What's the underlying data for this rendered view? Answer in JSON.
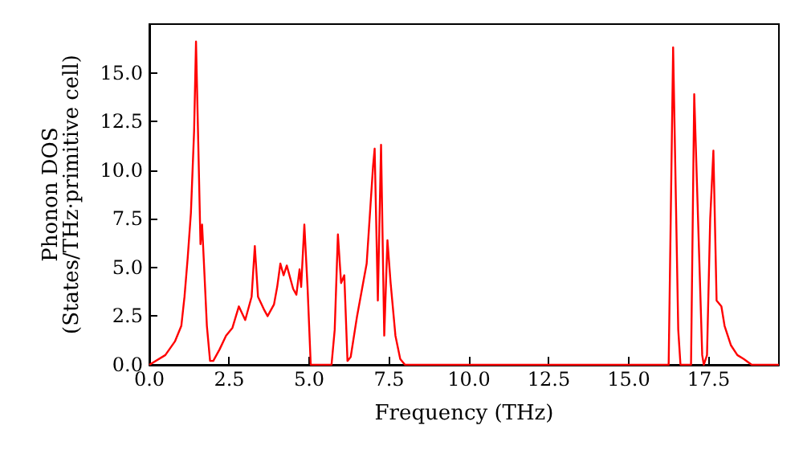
{
  "chart_data": {
    "type": "line",
    "xlabel": "Frequency (THz)",
    "ylabel": "Phonon DOS\n(States/THz·primitive cell)",
    "xlim": [
      0,
      19.7
    ],
    "xticks": [
      {
        "value": 0,
        "label": "0.0"
      },
      2.5,
      {
        "value": 5,
        "label": "5.0"
      },
      7.5,
      {
        "value": 10,
        "label": "10.0"
      },
      12.5,
      {
        "value": 15,
        "label": "15.0"
      },
      17.5
    ],
    "ylim": [
      0,
      17.5
    ],
    "yticks": [
      {
        "value": 0,
        "label": "0.0"
      },
      2.5,
      {
        "value": 5,
        "label": "5.0"
      },
      7.5,
      {
        "value": 10,
        "label": "10.0"
      },
      12.5,
      {
        "value": 15,
        "label": "15.0"
      }
    ],
    "marker": "none",
    "line_style": "solid",
    "series": [
      {
        "color": "#ff0000",
        "x": [
          0,
          0.5,
          0.8,
          1.0,
          1.1,
          1.2,
          1.3,
          1.4,
          1.46,
          1.6,
          1.65,
          1.7,
          1.8,
          1.9,
          2.0,
          2.2,
          2.4,
          2.6,
          2.8,
          3.0,
          3.2,
          3.3,
          3.4,
          3.6,
          3.7,
          3.9,
          4.0,
          4.1,
          4.2,
          4.3,
          4.5,
          4.6,
          4.7,
          4.75,
          4.85,
          4.95,
          5.05,
          5.7,
          5.8,
          5.9,
          6.0,
          6.1,
          6.2,
          6.3,
          6.5,
          6.7,
          6.8,
          7.0,
          7.05,
          7.15,
          7.25,
          7.35,
          7.45,
          7.55,
          7.7,
          7.85,
          8.0,
          16.25,
          16.39,
          16.55,
          16.62,
          16.95,
          17.05,
          17.3,
          17.35,
          17.45,
          17.55,
          17.65,
          17.75,
          17.9,
          18.0,
          18.2,
          18.4,
          18.6,
          18.85,
          19.7
        ],
        "values": [
          0,
          0.5,
          1.2,
          2.0,
          3.5,
          5.5,
          7.8,
          12,
          16.6,
          6.2,
          7.2,
          5.5,
          2.0,
          0.2,
          0.2,
          0.8,
          1.5,
          1.9,
          3.0,
          2.3,
          3.5,
          6.1,
          3.5,
          2.8,
          2.5,
          3.1,
          4.0,
          5.2,
          4.6,
          5.1,
          3.9,
          3.6,
          4.9,
          4.0,
          7.2,
          4.0,
          0,
          0,
          1.8,
          6.7,
          4.2,
          4.6,
          0.2,
          0.4,
          2.5,
          4.3,
          5.2,
          10.2,
          11.1,
          3.3,
          11.3,
          1.5,
          6.4,
          4.2,
          1.5,
          0.3,
          0,
          0,
          16.3,
          1.8,
          0,
          0,
          13.9,
          0.5,
          0,
          0.5,
          7.5,
          11.0,
          3.3,
          3.0,
          2.0,
          1.0,
          0.5,
          0.3,
          0,
          0
        ]
      }
    ]
  }
}
